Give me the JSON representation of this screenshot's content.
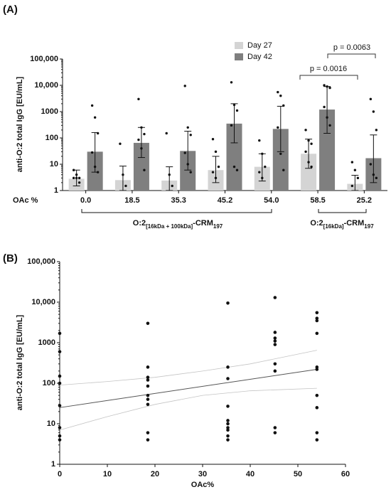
{
  "chart_data": [
    {
      "type": "bar",
      "title": "(A)",
      "ylabel": "anti-O:2 total IgG [EU/mL]",
      "xlabel": "OAc %",
      "categories": [
        "0.0",
        "18.5",
        "35.3",
        "45.2",
        "54.0",
        "58.5",
        "25.2"
      ],
      "log_y": true,
      "ylim": [
        1,
        100000
      ],
      "yticks": [
        1,
        10,
        100,
        1000,
        {
          "value": 10000,
          "label": "10,000"
        },
        {
          "value": 100000,
          "label": "100,000"
        }
      ],
      "series": [
        {
          "name": "Day 27",
          "color": "#d4d4d4",
          "values": [
            2.8,
            2.5,
            2.4,
            6,
            8,
            25,
            1.8
          ],
          "error_high": [
            6,
            8.5,
            8,
            20,
            25,
            90,
            3.8
          ],
          "error_low": [
            1.5,
            1,
            1,
            2,
            2.3,
            7,
            1
          ],
          "points": [
            [
              6,
              4,
              3,
              3,
              3,
              2
            ],
            [
              60,
              4,
              1.5
            ],
            [
              150,
              4,
              1.5
            ],
            [
              90,
              30,
              8,
              5,
              3
            ],
            [
              80,
              25,
              8,
              5,
              3
            ],
            [
              200,
              80,
              60,
              30,
              12,
              8
            ],
            [
              12,
              6,
              3,
              1.5
            ]
          ]
        },
        {
          "name": "Day 42",
          "color": "#7f7f7f",
          "values": [
            30,
            65,
            32,
            350,
            220,
            1200,
            17
          ],
          "error_high": [
            160,
            250,
            180,
            2000,
            1600,
            9000,
            130
          ],
          "error_low": [
            5,
            18,
            6,
            65,
            30,
            150,
            2
          ],
          "points": [
            [
              1700,
              600,
              150,
              28,
              8,
              5
            ],
            [
              3000,
              250,
              140,
              85,
              40,
              6
            ],
            [
              9500,
              250,
              130,
              27,
              10,
              5
            ],
            [
              13000,
              1800,
              1100,
              300,
              8,
              6
            ],
            [
              5500,
              4000,
              1700,
              250,
              25,
              6
            ],
            [
              10000,
              9000,
              8000,
              1500,
              600,
              300
            ],
            [
              3000,
              1000,
              200,
              10,
              4,
              3
            ]
          ]
        }
      ],
      "annotations": [
        "p = 0.0016",
        "p = 0.0063"
      ],
      "group_labels": [
        {
          "text": "O:2",
          "sub": "[16kDa + 100kDa]",
          "text2": "-CRM",
          "sub2": "197"
        },
        {
          "text": "O:2",
          "sub": "[16kDa]",
          "text2": "-CRM",
          "sub2": "197"
        }
      ]
    },
    {
      "type": "scatter",
      "title": "(B)",
      "ylabel": "anti-O:2 total IgG [EU/mL]",
      "xlabel": "OAc%",
      "color": "#111111",
      "log_y": true,
      "xlim": [
        0,
        60
      ],
      "xticks": [
        0,
        10,
        20,
        30,
        40,
        50,
        60
      ],
      "ylim": [
        1,
        100000
      ],
      "yticks": [
        1,
        10,
        100,
        1000,
        {
          "value": 10000,
          "label": "10,000"
        },
        {
          "value": 100000,
          "label": "100,000"
        }
      ],
      "x": [
        0,
        0,
        0,
        0,
        0,
        0,
        0,
        0,
        18.5,
        18.5,
        18.5,
        18.5,
        18.5,
        18.5,
        18.5,
        18.5,
        18.5,
        18.5,
        35.3,
        35.3,
        35.3,
        35.3,
        35.3,
        35.3,
        35.3,
        35.3,
        35.3,
        35.3,
        45.2,
        45.2,
        45.2,
        45.2,
        45.2,
        45.2,
        45.2,
        45.2,
        45.2,
        54,
        54,
        54,
        54,
        54,
        54,
        54,
        54,
        54,
        54
      ],
      "values": [
        1700,
        600,
        150,
        100,
        28,
        8,
        5,
        4,
        3000,
        250,
        140,
        120,
        85,
        50,
        40,
        30,
        6,
        4,
        9500,
        250,
        130,
        27,
        12,
        10,
        8,
        7,
        5,
        4,
        13000,
        1800,
        1300,
        1100,
        900,
        300,
        200,
        8,
        6,
        5500,
        4000,
        3500,
        1700,
        250,
        220,
        50,
        25,
        6,
        4
      ],
      "lines": [
        {
          "color": "#555555",
          "x": [
            0,
            54
          ],
          "values": [
            25,
            220
          ]
        },
        {
          "color": "#c4c4c4",
          "x": [
            0,
            10,
            20,
            30,
            40,
            54
          ],
          "values": [
            90,
            110,
            140,
            200,
            300,
            650
          ]
        },
        {
          "color": "#c4c4c4",
          "x": [
            0,
            10,
            20,
            30,
            40,
            54
          ],
          "values": [
            7,
            15,
            30,
            50,
            65,
            75
          ]
        }
      ]
    }
  ]
}
